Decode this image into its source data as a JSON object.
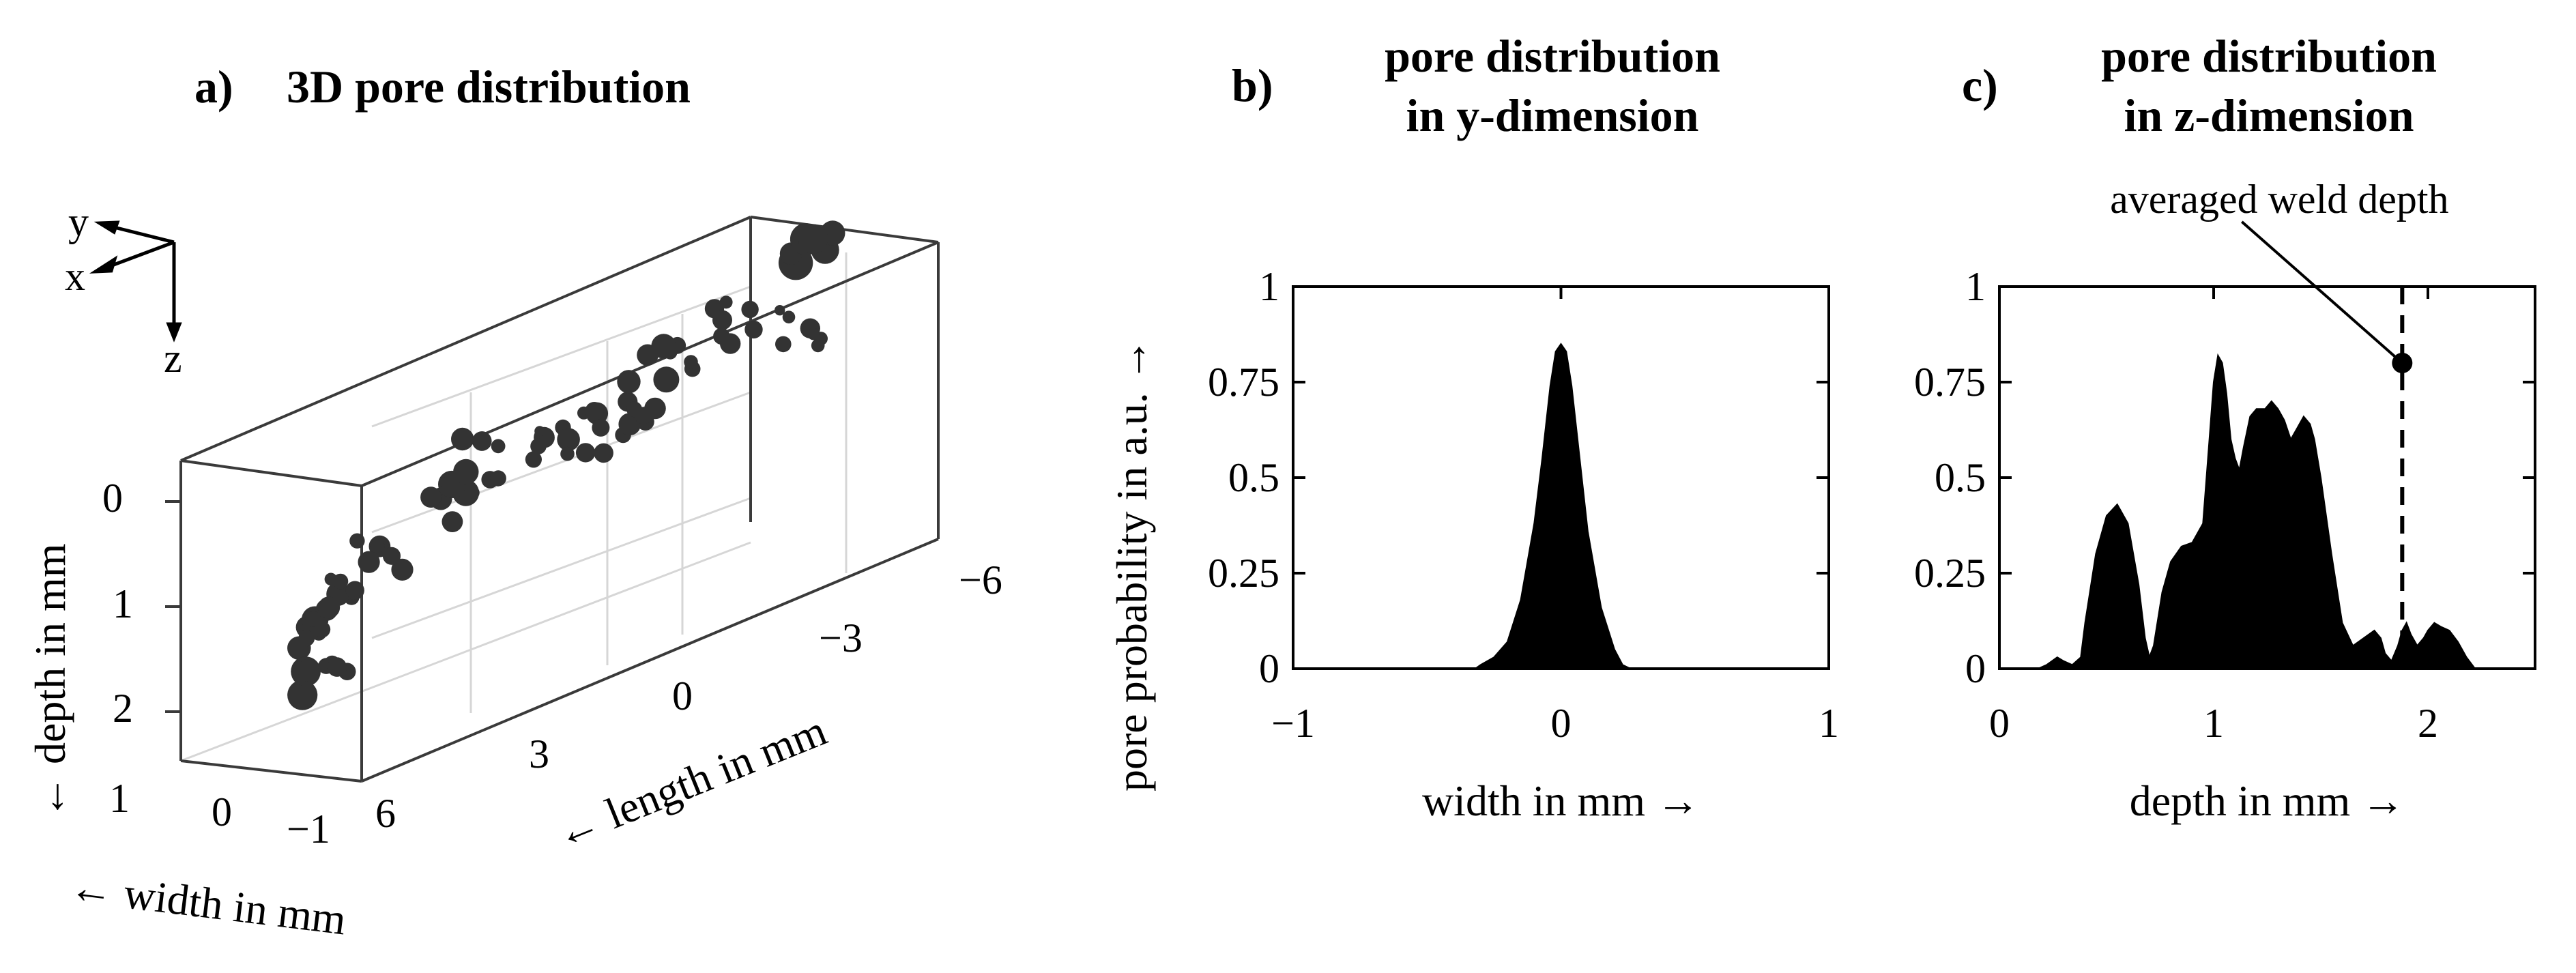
{
  "colors": {
    "ink": "#000000",
    "pore": "#333333",
    "grid": "#d6d6d6",
    "box": "#3a3a3a"
  },
  "panel_a": {
    "letter": "a)",
    "title": "3D pore distribution",
    "axis_x_char": "x",
    "axis_y_char": "y",
    "axis_z_char": "z",
    "depth_label": "← depth in mm",
    "length_label": "← length in mm",
    "width_label": "← width in mm",
    "depth_ticks": [
      "0",
      "1",
      "2"
    ],
    "width_ticks": [
      "1",
      "0",
      "−1"
    ],
    "length_ticks": [
      "6",
      "3",
      "0",
      "−3",
      "−6"
    ]
  },
  "panel_b": {
    "letter": "b)",
    "title_line1": "pore distribution",
    "title_line2": "in y-dimension"
  },
  "panel_c": {
    "letter": "c)",
    "title_line1": "pore distribution",
    "title_line2": "in z-dimension",
    "annotation": "averaged weld depth"
  },
  "shared_ylabel": "pore probability in a.u. →",
  "chart_data": [
    {
      "type": "scatter",
      "title": "3D pore distribution",
      "xlabel": "← length in mm",
      "ylabel": "← width in mm",
      "zlabel": "← depth in mm",
      "xlim": [
        -6,
        6
      ],
      "ylim": [
        -1,
        1
      ],
      "zlim": [
        0,
        2.5
      ],
      "x_ticks": [
        "6",
        "3",
        "0",
        "−3",
        "−6"
      ],
      "y_ticks": [
        "1",
        "0",
        "−1"
      ],
      "z_ticks": [
        "0",
        "1",
        "2"
      ],
      "clusters": [
        {
          "x": 5.3,
          "z": 1.55,
          "size": 18
        },
        {
          "x": 5.2,
          "z": 2.0,
          "size": 18
        },
        {
          "x": 5.0,
          "z": 1.3,
          "size": 16
        },
        {
          "x": 4.0,
          "z": 1.0,
          "size": 14
        },
        {
          "x": 2.4,
          "z": 0.85,
          "size": 16
        },
        {
          "x": 1.8,
          "z": 0.55,
          "size": 18
        },
        {
          "x": 0.2,
          "z": 0.7,
          "size": 14
        },
        {
          "x": -0.8,
          "z": 0.75,
          "size": 14
        },
        {
          "x": -1.4,
          "z": 0.55,
          "size": 14
        },
        {
          "x": -2.2,
          "z": 0.3,
          "size": 18
        },
        {
          "x": -3.6,
          "z": 0.2,
          "size": 16
        },
        {
          "x": -5.3,
          "z": -0.2,
          "size": 22
        },
        {
          "x": -5.0,
          "z": 0.45,
          "size": 12
        }
      ]
    },
    {
      "type": "area",
      "title": "pore distribution in y-dimension",
      "xlabel": "width in mm →",
      "ylabel": "pore probability in a.u. →",
      "xlim": [
        -1,
        1
      ],
      "ylim": [
        0,
        1
      ],
      "x_ticks": [
        -1,
        0,
        1
      ],
      "x_tick_labels": [
        "−1",
        "0",
        "1"
      ],
      "y_ticks": [
        0,
        0.25,
        0.5,
        0.75,
        1
      ],
      "y_tick_labels": [
        "0",
        "0.25",
        "0.5",
        "0.75",
        "1"
      ],
      "x": [
        -1,
        -0.32,
        -0.3,
        -0.25,
        -0.2,
        -0.15,
        -0.1,
        -0.07,
        -0.04,
        -0.02,
        0,
        0.02,
        0.04,
        0.07,
        0.1,
        0.15,
        0.2,
        0.23,
        0.26,
        1
      ],
      "values": [
        0,
        0,
        0.01,
        0.03,
        0.07,
        0.18,
        0.38,
        0.55,
        0.74,
        0.83,
        0.85,
        0.83,
        0.74,
        0.55,
        0.36,
        0.16,
        0.05,
        0.01,
        0,
        0
      ]
    },
    {
      "type": "area",
      "title": "pore distribution in z-dimension",
      "xlabel": "depth in mm →",
      "ylabel": "pore probability in a.u. →",
      "xlim": [
        0,
        2.5
      ],
      "ylim": [
        0,
        1
      ],
      "x_ticks": [
        0,
        1,
        2
      ],
      "x_tick_labels": [
        "0",
        "1",
        "2"
      ],
      "y_ticks": [
        0,
        0.25,
        0.5,
        0.75,
        1
      ],
      "y_tick_labels": [
        "0",
        "0.25",
        "0.5",
        "0.75",
        "1"
      ],
      "x": [
        0,
        0.18,
        0.22,
        0.27,
        0.3,
        0.34,
        0.38,
        0.4,
        0.45,
        0.5,
        0.55,
        0.6,
        0.65,
        0.68,
        0.7,
        0.72,
        0.76,
        0.8,
        0.85,
        0.9,
        0.95,
        0.98,
        1.0,
        1.02,
        1.04,
        1.06,
        1.08,
        1.1,
        1.12,
        1.14,
        1.17,
        1.2,
        1.24,
        1.27,
        1.3,
        1.33,
        1.36,
        1.39,
        1.42,
        1.45,
        1.47,
        1.5,
        1.55,
        1.6,
        1.65,
        1.7,
        1.75,
        1.78,
        1.8,
        1.83,
        1.86,
        1.88,
        1.9,
        1.92,
        1.95,
        1.98,
        2.0,
        2.03,
        2.06,
        2.1,
        2.14,
        2.18,
        2.22,
        2.5
      ],
      "values": [
        0,
        0,
        0.01,
        0.03,
        0.02,
        0.01,
        0.03,
        0.12,
        0.3,
        0.4,
        0.43,
        0.38,
        0.22,
        0.08,
        0.03,
        0.06,
        0.2,
        0.28,
        0.32,
        0.33,
        0.38,
        0.6,
        0.75,
        0.82,
        0.8,
        0.72,
        0.6,
        0.55,
        0.52,
        0.58,
        0.66,
        0.68,
        0.68,
        0.7,
        0.68,
        0.65,
        0.6,
        0.63,
        0.66,
        0.64,
        0.6,
        0.5,
        0.3,
        0.12,
        0.06,
        0.08,
        0.1,
        0.08,
        0.04,
        0.02,
        0.06,
        0.1,
        0.12,
        0.09,
        0.06,
        0.08,
        0.1,
        0.12,
        0.11,
        0.1,
        0.07,
        0.03,
        0,
        0
      ],
      "annotation": {
        "text": "averaged weld depth",
        "x": 1.88,
        "y": 0.8
      }
    }
  ]
}
